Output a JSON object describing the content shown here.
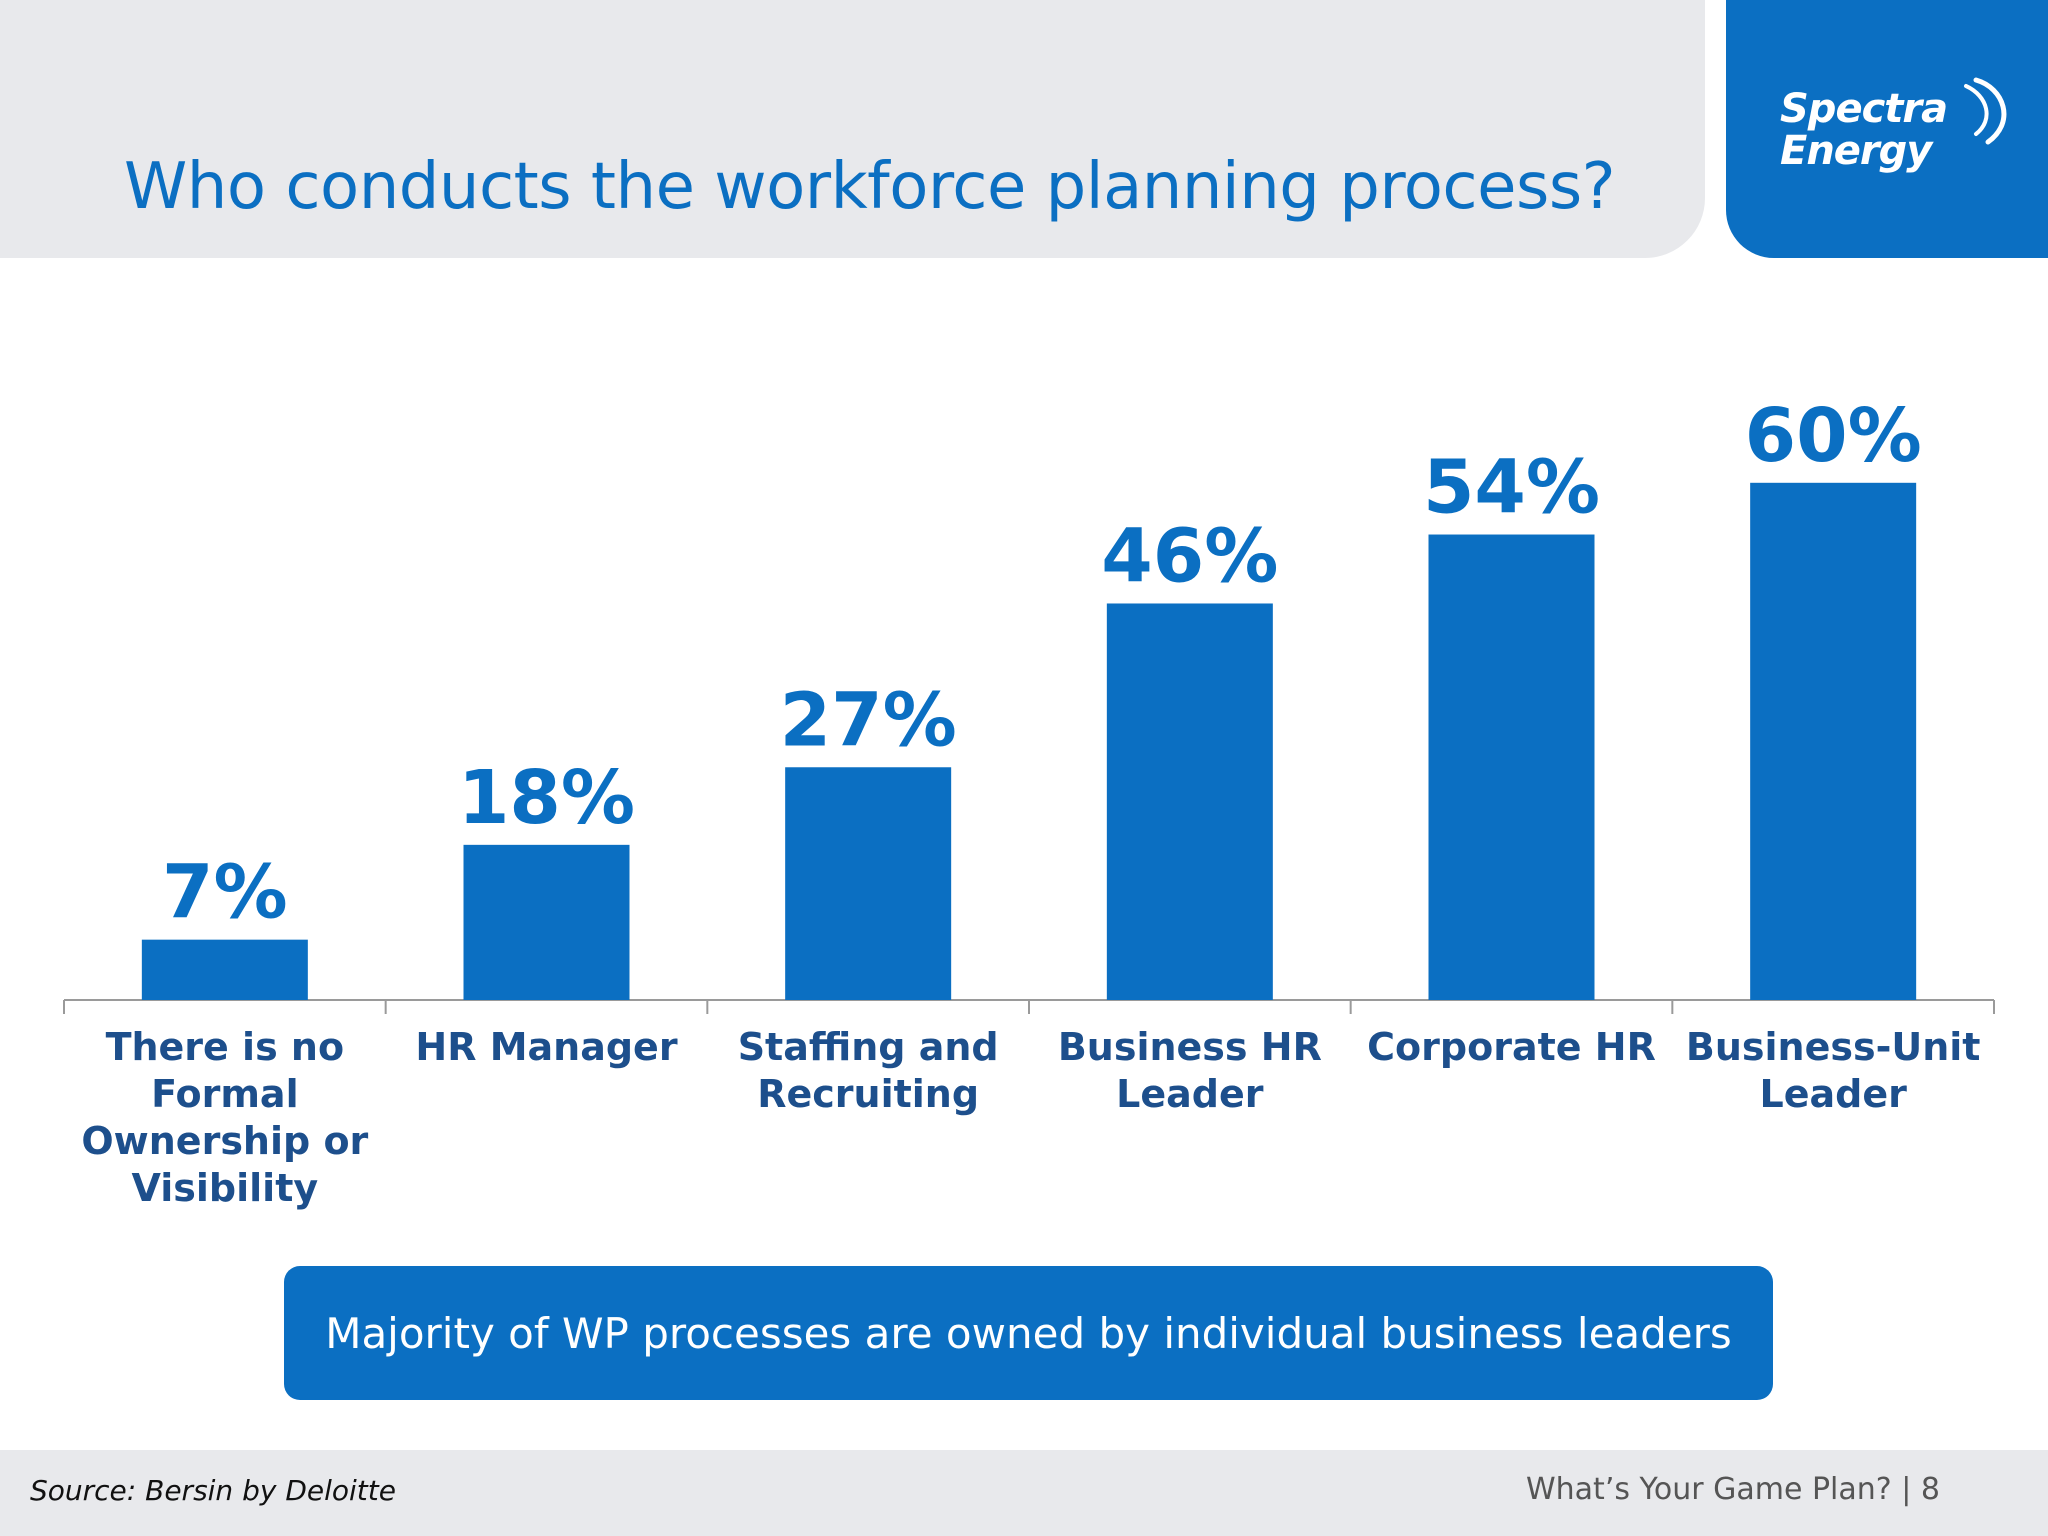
{
  "slide": {
    "title": "Who conducts the workforce planning process?",
    "logo": {
      "line1": "Spectra",
      "line2": "Energy"
    },
    "callout": "Majority of WP processes are owned by individual business leaders",
    "footer": {
      "source": "Source: Bersin by Deloitte",
      "deck_title": "What’s Your Game Plan?",
      "separator": "|",
      "page_number": "8"
    }
  },
  "colors": {
    "accent": "#0b6fc2",
    "band": "#e8e9ec",
    "label": "#1d4f8c"
  },
  "chart_data": {
    "type": "bar",
    "title": "Who conducts the workforce planning process?",
    "categories": [
      "There is no Formal Ownership or Visibility",
      "HR Manager",
      "Staffing and Recruiting",
      "Business HR Leader",
      "Corporate HR",
      "Business-Unit Leader"
    ],
    "category_lines": [
      [
        "There is no",
        "Formal",
        "Ownership or",
        "Visibility"
      ],
      [
        "HR Manager"
      ],
      [
        "Staffing and",
        "Recruiting"
      ],
      [
        "Business HR",
        "Leader"
      ],
      [
        "Corporate HR"
      ],
      [
        "Business-Unit",
        "Leader"
      ]
    ],
    "values": [
      7,
      18,
      27,
      46,
      54,
      60
    ],
    "value_labels": [
      "7%",
      "18%",
      "27%",
      "46%",
      "54%",
      "60%"
    ],
    "unit": "%",
    "ylim": [
      0,
      60
    ],
    "xlabel": "",
    "ylabel": "",
    "grid": false,
    "legend": "none"
  }
}
